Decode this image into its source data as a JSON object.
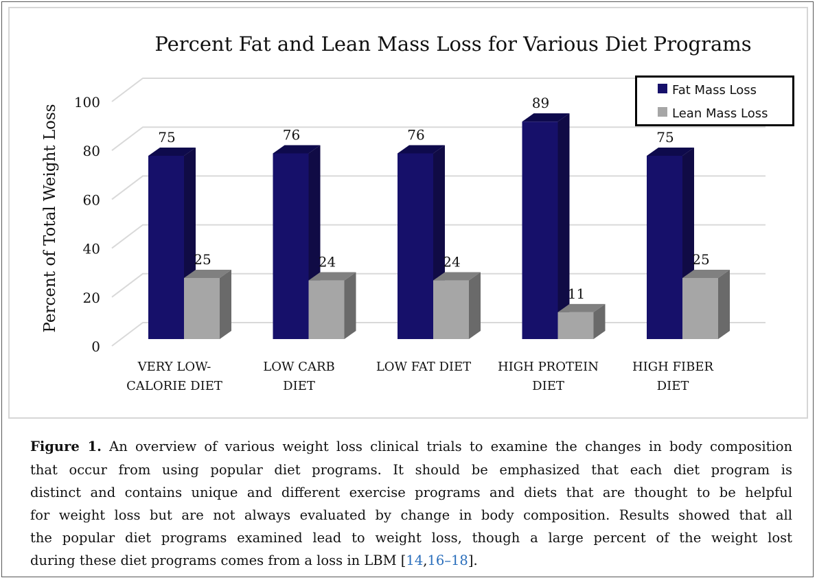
{
  "chart_data": {
    "type": "bar",
    "style": "3d-clustered-column",
    "title": "Percent Fat and Lean Mass Loss for Various Diet Programs",
    "ylabel": "Percent of Total Weight Loss",
    "xlabel": "",
    "ylim": [
      0,
      100
    ],
    "yticks": [
      "0",
      "20",
      "40",
      "60",
      "80",
      "100"
    ],
    "grid": true,
    "legend_position": "top-right",
    "categories": [
      [
        "VERY LOW-",
        "CALORIE DIET"
      ],
      [
        "LOW CARB",
        "DIET"
      ],
      [
        "LOW FAT DIET",
        ""
      ],
      [
        "HIGH PROTEIN",
        "DIET"
      ],
      [
        "HIGH FIBER",
        "DIET"
      ]
    ],
    "series": [
      {
        "name": "Fat Mass Loss",
        "values": [
          75,
          76,
          76,
          89,
          75
        ],
        "color": "#16106a"
      },
      {
        "name": "Lean Mass Loss",
        "values": [
          25,
          24,
          24,
          11,
          25
        ],
        "color": "#a6a6a6"
      }
    ]
  },
  "caption": {
    "label": "Figure 1.",
    "lines": [
      " An overview of various weight loss clinical trials to examine the changes in body composition",
      "that occur from using popular diet programs.  It should be emphasized that each diet program is",
      "distinct and contains unique and different exercise programs and diets that are thought to be helpful",
      "for weight loss but are not always evaluated by change in body composition. Results showed that all",
      "the popular diet programs examined lead to weight loss, though a large percent of the weight lost"
    ],
    "last_line_text": "during these diet programs comes from a loss in LBM [",
    "ref1": "14",
    "ref_sep": ",",
    "ref2": "16–18",
    "last_line_end": "].",
    "link_color": "#2a6ebb"
  }
}
